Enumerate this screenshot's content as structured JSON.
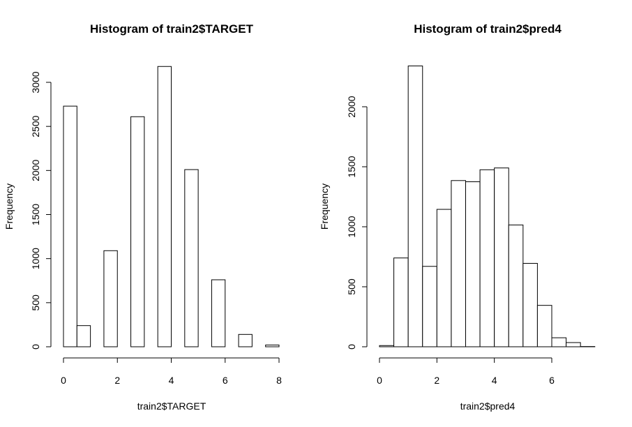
{
  "chart_data": [
    {
      "type": "bar",
      "title": "Histogram of train2$TARGET",
      "xlabel": "train2$TARGET",
      "ylabel": "Frequency",
      "xlim": [
        0,
        8
      ],
      "ylim": [
        0,
        3200
      ],
      "x_ticks": [
        0,
        2,
        4,
        6,
        8
      ],
      "y_ticks": [
        0,
        500,
        1000,
        1500,
        2000,
        2500,
        3000
      ],
      "bins": [
        {
          "x0": 0.0,
          "x1": 0.5,
          "count": 2730
        },
        {
          "x0": 0.5,
          "x1": 1.0,
          "count": 240
        },
        {
          "x0": 1.0,
          "x1": 1.5,
          "count": 0
        },
        {
          "x0": 1.5,
          "x1": 2.0,
          "count": 1090
        },
        {
          "x0": 2.0,
          "x1": 2.5,
          "count": 0
        },
        {
          "x0": 2.5,
          "x1": 3.0,
          "count": 2610
        },
        {
          "x0": 3.0,
          "x1": 3.5,
          "count": 0
        },
        {
          "x0": 3.5,
          "x1": 4.0,
          "count": 3180
        },
        {
          "x0": 4.0,
          "x1": 4.5,
          "count": 0
        },
        {
          "x0": 4.5,
          "x1": 5.0,
          "count": 2010
        },
        {
          "x0": 5.0,
          "x1": 5.5,
          "count": 0
        },
        {
          "x0": 5.5,
          "x1": 6.0,
          "count": 760
        },
        {
          "x0": 6.0,
          "x1": 6.5,
          "count": 0
        },
        {
          "x0": 6.5,
          "x1": 7.0,
          "count": 140
        },
        {
          "x0": 7.0,
          "x1": 7.5,
          "count": 0
        },
        {
          "x0": 7.5,
          "x1": 8.0,
          "count": 20
        }
      ]
    },
    {
      "type": "bar",
      "title": "Histogram of train2$pred4",
      "xlabel": "train2$pred4",
      "ylabel": "Frequency",
      "xlim": [
        0,
        7.5
      ],
      "ylim": [
        0,
        2350
      ],
      "x_ticks": [
        0,
        2,
        4,
        6
      ],
      "y_ticks": [
        0,
        500,
        1000,
        1500,
        2000
      ],
      "bins": [
        {
          "x0": 0.0,
          "x1": 0.5,
          "count": 10
        },
        {
          "x0": 0.5,
          "x1": 1.0,
          "count": 740
        },
        {
          "x0": 1.0,
          "x1": 1.5,
          "count": 2340
        },
        {
          "x0": 1.5,
          "x1": 2.0,
          "count": 670
        },
        {
          "x0": 2.0,
          "x1": 2.5,
          "count": 1145
        },
        {
          "x0": 2.5,
          "x1": 3.0,
          "count": 1385
        },
        {
          "x0": 3.0,
          "x1": 3.5,
          "count": 1375
        },
        {
          "x0": 3.5,
          "x1": 4.0,
          "count": 1475
        },
        {
          "x0": 4.0,
          "x1": 4.5,
          "count": 1490
        },
        {
          "x0": 4.5,
          "x1": 5.0,
          "count": 1015
        },
        {
          "x0": 5.0,
          "x1": 5.5,
          "count": 695
        },
        {
          "x0": 5.5,
          "x1": 6.0,
          "count": 345
        },
        {
          "x0": 6.0,
          "x1": 6.5,
          "count": 75
        },
        {
          "x0": 6.5,
          "x1": 7.0,
          "count": 35
        },
        {
          "x0": 7.0,
          "x1": 7.5,
          "count": 2
        }
      ]
    }
  ]
}
